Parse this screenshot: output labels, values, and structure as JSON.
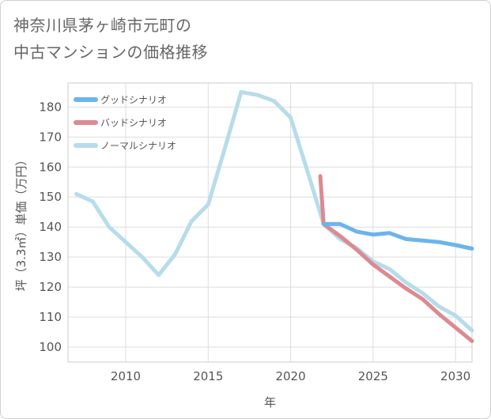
{
  "chart_data": {
    "type": "line",
    "title": [
      "神奈川県茅ヶ崎市元町の",
      "中古マンションの価格推移"
    ],
    "xlabel": "年",
    "ylabel": "坪（3.3㎡）単価（万円）",
    "xlim": [
      2006.5,
      2031
    ],
    "ylim": [
      95,
      188
    ],
    "xticks": [
      2010,
      2015,
      2020,
      2025,
      2030
    ],
    "yticks": [
      100,
      110,
      120,
      130,
      140,
      150,
      160,
      170,
      180
    ],
    "grid": true,
    "legend_position": "top-left",
    "series": [
      {
        "name": "グッドシナリオ",
        "color": "#6cb4ec",
        "points": [
          [
            2022,
            141
          ],
          [
            2023,
            141
          ],
          [
            2024,
            138.5
          ],
          [
            2025,
            137.5
          ],
          [
            2026,
            138
          ],
          [
            2027,
            136
          ],
          [
            2028,
            135.5
          ],
          [
            2029,
            135
          ],
          [
            2030,
            134
          ],
          [
            2031,
            132.8
          ]
        ]
      },
      {
        "name": "バッドシナリオ",
        "color": "#dc8a92",
        "points": [
          [
            2021.8,
            157
          ],
          [
            2022,
            141
          ],
          [
            2023,
            137
          ],
          [
            2024,
            132.5
          ],
          [
            2025,
            127.5
          ],
          [
            2026,
            123.5
          ],
          [
            2027,
            119.5
          ],
          [
            2028,
            116
          ],
          [
            2029,
            111
          ],
          [
            2030,
            106.5
          ],
          [
            2031,
            102
          ]
        ]
      },
      {
        "name": "ノーマルシナリオ",
        "color": "#b7dcea",
        "points": [
          [
            2007,
            151
          ],
          [
            2008,
            148.5
          ],
          [
            2009,
            140
          ],
          [
            2010,
            135
          ],
          [
            2011,
            130
          ],
          [
            2012,
            124
          ],
          [
            2013,
            131
          ],
          [
            2014,
            142
          ],
          [
            2015,
            147.5
          ],
          [
            2016,
            166
          ],
          [
            2017,
            185
          ],
          [
            2018,
            184
          ],
          [
            2019,
            182
          ],
          [
            2020,
            176.5
          ],
          [
            2021,
            159
          ],
          [
            2022,
            141
          ],
          [
            2023,
            136
          ],
          [
            2024,
            133
          ],
          [
            2025,
            128.5
          ],
          [
            2026,
            126
          ],
          [
            2027,
            121.5
          ],
          [
            2028,
            118
          ],
          [
            2029,
            113.5
          ],
          [
            2030,
            110.5
          ],
          [
            2031,
            105.5
          ]
        ]
      }
    ]
  }
}
